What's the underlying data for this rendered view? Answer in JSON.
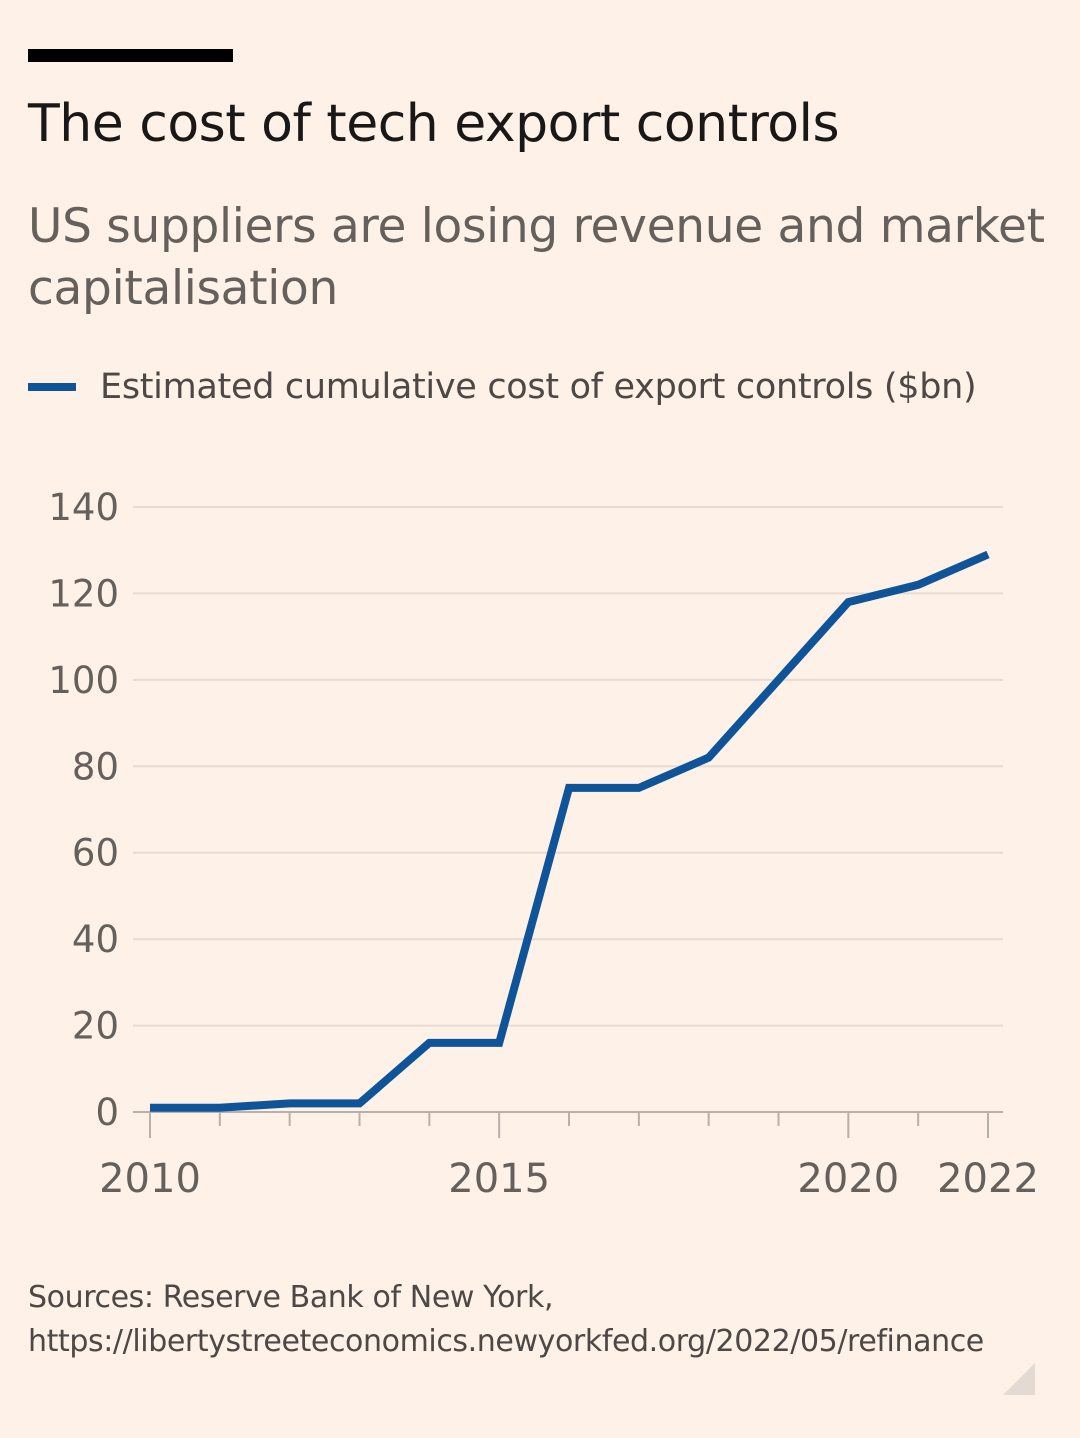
{
  "header": {
    "title": "The cost of tech export controls",
    "subtitle": "US suppliers are losing revenue and market capitalisation"
  },
  "legend": {
    "label": "Estimated cumulative cost of export controls ($bn)",
    "color": "#0f5499"
  },
  "footer": {
    "source_line1": "Sources: Reserve Bank of New York,",
    "source_line2": "https://libertystreeteconomics.newyorkfed.org/2022/05/refinance"
  },
  "chart_data": {
    "type": "line",
    "title": "The cost of tech export controls",
    "subtitle": "US suppliers are losing revenue and market capitalisation",
    "xlabel": "",
    "ylabel": "",
    "xlim": [
      2010,
      2022
    ],
    "ylim": [
      0,
      140
    ],
    "yticks": [
      0,
      20,
      40,
      60,
      80,
      100,
      120,
      140
    ],
    "xtick_labels": [
      "2010",
      "2015",
      "2020",
      "2022"
    ],
    "xtick_label_values": [
      2010,
      2015,
      2020,
      2022
    ],
    "xtick_minor": [
      2010,
      2011,
      2012,
      2013,
      2014,
      2015,
      2016,
      2017,
      2018,
      2019,
      2020,
      2021,
      2022
    ],
    "grid": true,
    "legend_position": "top-left",
    "series": [
      {
        "name": "Estimated cumulative cost of export controls ($bn)",
        "color": "#0f5499",
        "x": [
          2010,
          2011,
          2012,
          2013,
          2014,
          2015,
          2016,
          2017,
          2018,
          2019,
          2020,
          2021,
          2022
        ],
        "values": [
          1,
          1,
          2,
          2,
          16,
          16,
          75,
          75,
          82,
          100,
          118,
          122,
          129
        ]
      }
    ]
  }
}
